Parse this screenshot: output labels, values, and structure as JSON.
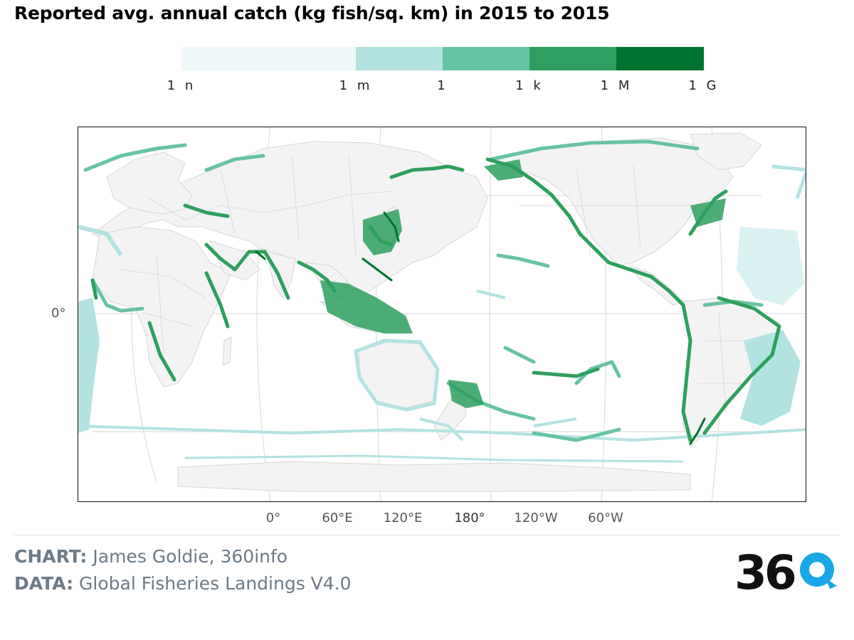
{
  "title": "Reported avg. annual catch (kg fish/sq. km) in 2015 to 2015",
  "legend": {
    "ticks": [
      "1 n",
      "1 m",
      "1",
      "1 k",
      "1 M",
      "1 G"
    ],
    "colors": [
      "#eef8f8",
      "#b3e3e1",
      "#66c3a4",
      "#2e9f5e",
      "#00722f"
    ]
  },
  "map": {
    "land_color": "#f3f3f3",
    "border_color": "#d6d6d6",
    "grid_color": "#dddddd",
    "lat_label": "0°",
    "lon_labels": [
      "0°",
      "60°E",
      "120°E",
      "180°",
      "120°W",
      "60°W"
    ]
  },
  "credits": {
    "chart_label": "CHART:",
    "chart_value": "James Goldie, 360info",
    "data_label": "DATA:",
    "data_value": "Global Fisheries Landings V4.0"
  },
  "logo": {
    "text": "360",
    "accent": "#1aa7e8"
  }
}
